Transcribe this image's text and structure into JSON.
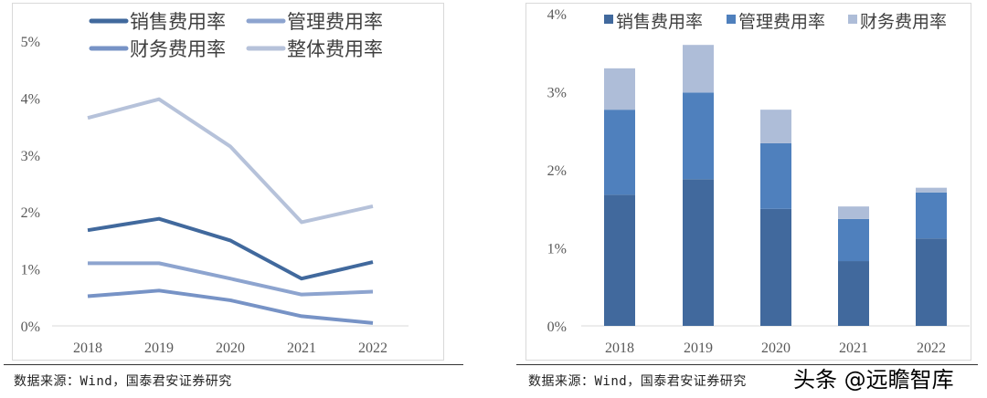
{
  "chart_data": [
    {
      "type": "line",
      "categories": [
        "2018",
        "2019",
        "2020",
        "2021",
        "2022"
      ],
      "ylim": [
        0,
        5
      ],
      "yticks": [
        "0%",
        "1%",
        "2%",
        "3%",
        "4%",
        "5%"
      ],
      "legend_position": "top",
      "series": [
        {
          "name": "销售费用率",
          "color": "#41699d",
          "values": [
            1.68,
            1.88,
            1.5,
            0.83,
            1.12
          ]
        },
        {
          "name": "管理费用率",
          "color": "#8da4cf",
          "values": [
            1.1,
            1.1,
            0.83,
            0.55,
            0.6
          ]
        },
        {
          "name": "财务费用率",
          "color": "#7793c6",
          "values": [
            0.52,
            0.62,
            0.45,
            0.17,
            0.05
          ]
        },
        {
          "name": "整体费用率",
          "color": "#b6c2da",
          "values": [
            3.65,
            3.98,
            3.15,
            1.82,
            2.1
          ]
        }
      ]
    },
    {
      "type": "bar",
      "stacked": true,
      "categories": [
        "2018",
        "2019",
        "2020",
        "2021",
        "2022"
      ],
      "ylim": [
        0,
        4
      ],
      "yticks": [
        "0%",
        "1%",
        "2%",
        "3%",
        "4%"
      ],
      "legend_position": "top",
      "series": [
        {
          "name": "销售费用率",
          "color": "#41699d",
          "values": [
            1.68,
            1.88,
            1.5,
            0.83,
            1.12
          ]
        },
        {
          "name": "管理费用率",
          "color": "#4f80bd",
          "values": [
            1.09,
            1.11,
            0.84,
            0.54,
            0.59
          ]
        },
        {
          "name": "财务费用率",
          "color": "#aebdd8",
          "values": [
            0.53,
            0.61,
            0.43,
            0.16,
            0.06
          ]
        }
      ]
    }
  ],
  "source_left": "数据来源：Wind，国泰君安证券研究",
  "source_right": "数据来源：Wind，国泰君安证券研究",
  "watermark": "头条 @远瞻智库"
}
